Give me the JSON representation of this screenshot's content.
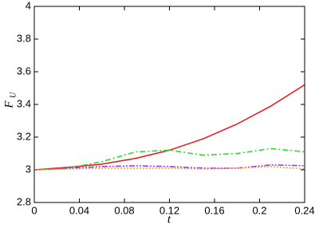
{
  "chart_data": {
    "type": "line",
    "x_label": "t",
    "y_label": "F",
    "y_label_sub": "U",
    "x": [
      0,
      0.03,
      0.06,
      0.09,
      0.12,
      0.15,
      0.18,
      0.21,
      0.24
    ],
    "series": [
      {
        "color": "#e8141a",
        "dash": "none",
        "values": [
          3.0,
          3.015,
          3.035,
          3.07,
          3.12,
          3.19,
          3.28,
          3.39,
          3.52
        ]
      },
      {
        "color": "#22dd22",
        "dash": "7 3 2 3",
        "values": [
          3.0,
          3.01,
          3.05,
          3.11,
          3.12,
          3.09,
          3.1,
          3.13,
          3.11
        ]
      },
      {
        "color": "#9933cc",
        "dash": "7 2 2 2 2 2",
        "values": [
          3.0,
          3.01,
          3.02,
          3.025,
          3.02,
          3.01,
          3.01,
          3.03,
          3.025
        ]
      },
      {
        "color": "#ff9933",
        "dash": "2 2",
        "values": [
          3.0,
          3.005,
          3.01,
          3.01,
          3.01,
          3.005,
          3.01,
          3.02,
          3.005
        ]
      }
    ],
    "xlim": [
      0,
      0.24
    ],
    "xticks": [
      0,
      0.04,
      0.08,
      0.12,
      0.16,
      0.2,
      0.24
    ],
    "ylim": [
      2.8,
      4
    ],
    "yticks": [
      2.8,
      3,
      3.2,
      3.4,
      3.6,
      3.8,
      4
    ],
    "grid": false
  }
}
